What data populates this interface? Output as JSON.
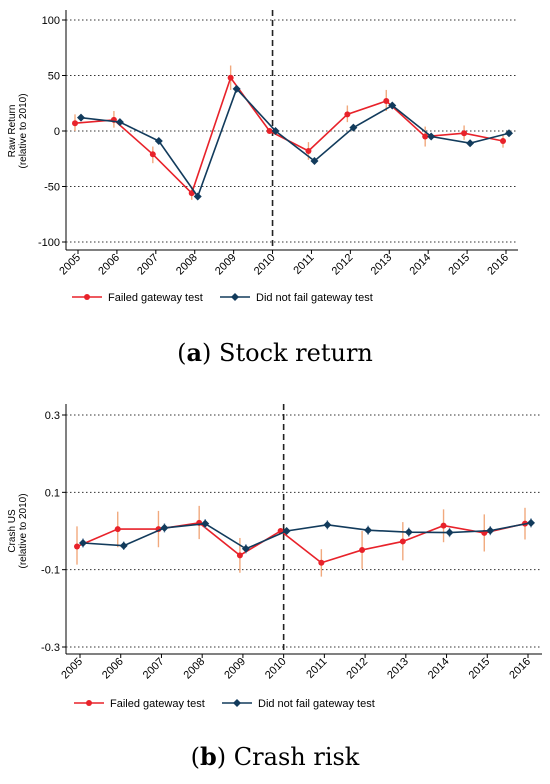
{
  "chart_data": [
    {
      "type": "line",
      "caption_letter": "a",
      "caption_text": "Stock return",
      "ylabel_lines": [
        "Raw Return",
        "(relative to 2010)"
      ],
      "xlabel": "",
      "categories": [
        "2005",
        "2006",
        "2007",
        "2008",
        "2009",
        "2010",
        "2011",
        "2012",
        "2013",
        "2014",
        "2015",
        "2016"
      ],
      "yticks": [
        "100",
        "50",
        "0",
        "-50",
        "-100"
      ],
      "ytick_values": [
        100,
        50,
        0,
        -50,
        -100
      ],
      "ylim": [
        -100,
        100
      ],
      "event_year": "2010",
      "grid": "horizontal dotted",
      "legend_position": "bottom",
      "series": [
        {
          "name": "Failed gateway test",
          "color": "#e8222a",
          "marker": "circle",
          "x": [
            2005,
            2006,
            2007,
            2008,
            2009,
            2010,
            2011,
            2012,
            2013,
            2014,
            2015,
            2016
          ],
          "values": [
            7,
            10,
            -21,
            -56,
            48,
            0,
            -18,
            15,
            27,
            -5,
            -2,
            -9
          ],
          "ci_low": [
            0,
            3,
            -29,
            -62,
            37,
            0,
            -26,
            8,
            18,
            -14,
            -8,
            -15
          ],
          "ci_high": [
            15,
            18,
            -14,
            -50,
            59,
            0,
            -10,
            23,
            37,
            4,
            5,
            -3
          ]
        },
        {
          "name": "Did not fail gateway test",
          "color": "#123b5c",
          "marker": "diamond",
          "x": [
            2005,
            2006,
            2007,
            2008,
            2009,
            2010,
            2011,
            2012,
            2013,
            2014,
            2015,
            2016
          ],
          "values": [
            12,
            8,
            -9,
            -59,
            38,
            0,
            -27,
            3,
            23,
            -5,
            -11,
            -2
          ],
          "ci_low": [
            9,
            5,
            -11,
            -62,
            35,
            0,
            -30,
            0,
            20,
            -7,
            -13,
            -4
          ],
          "ci_high": [
            15,
            11,
            -7,
            -56,
            41,
            0,
            -24,
            6,
            26,
            -3,
            -9,
            0
          ]
        }
      ]
    },
    {
      "type": "line",
      "caption_letter": "b",
      "caption_text": "Crash risk",
      "ylabel_lines": [
        "Crash US",
        "(relative to 2010)"
      ],
      "xlabel": "",
      "categories": [
        "2005",
        "2006",
        "2007",
        "2008",
        "2009",
        "2010",
        "2011",
        "2012",
        "2013",
        "2014",
        "2015",
        "2016"
      ],
      "yticks": [
        "0.3",
        "0.1",
        "-0.1",
        "-0.3"
      ],
      "ytick_values": [
        0.3,
        0.1,
        -0.1,
        -0.3
      ],
      "ylim": [
        -0.3,
        0.3
      ],
      "event_year": "2010",
      "grid": "horizontal dotted",
      "legend_position": "bottom",
      "series": [
        {
          "name": "Failed gateway test",
          "color": "#e8222a",
          "marker": "circle",
          "x": [
            2005,
            2006,
            2007,
            2008,
            2009,
            2010,
            2011,
            2012,
            2013,
            2014,
            2015,
            2016
          ],
          "values": [
            -0.04,
            0.005,
            0.005,
            0.021,
            -0.063,
            0,
            -0.082,
            -0.049,
            -0.027,
            0.014,
            -0.005,
            0.019
          ],
          "ci_low": [
            -0.087,
            -0.042,
            -0.042,
            -0.021,
            -0.108,
            0,
            -0.118,
            -0.098,
            -0.076,
            -0.029,
            -0.053,
            -0.022
          ],
          "ci_high": [
            0.012,
            0.05,
            0.052,
            0.065,
            -0.018,
            0,
            -0.047,
            0,
            0.023,
            0.056,
            0.043,
            0.06
          ]
        },
        {
          "name": "Did not fail gateway test",
          "color": "#123b5c",
          "marker": "diamond",
          "x": [
            2005,
            2006,
            2007,
            2008,
            2009,
            2010,
            2011,
            2012,
            2013,
            2014,
            2015,
            2016
          ],
          "values": [
            -0.031,
            -0.038,
            0.008,
            0.019,
            -0.046,
            0,
            0.016,
            0.002,
            -0.003,
            -0.004,
            0.001,
            0.021
          ],
          "ci_low": [
            -0.043,
            -0.049,
            -0.004,
            0.007,
            -0.058,
            0,
            0.004,
            -0.01,
            -0.015,
            -0.016,
            -0.011,
            0.009
          ],
          "ci_high": [
            -0.019,
            -0.027,
            0.02,
            0.031,
            -0.034,
            0,
            0.028,
            0.014,
            0.009,
            0.008,
            0.013,
            0.033
          ]
        }
      ]
    }
  ]
}
